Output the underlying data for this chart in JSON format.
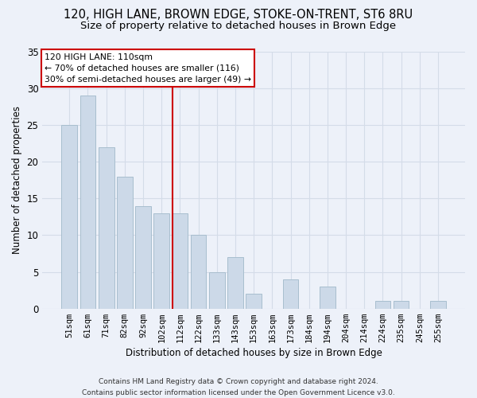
{
  "title_line1": "120, HIGH LANE, BROWN EDGE, STOKE-ON-TRENT, ST6 8RU",
  "title_line2": "Size of property relative to detached houses in Brown Edge",
  "xlabel": "Distribution of detached houses by size in Brown Edge",
  "ylabel": "Number of detached properties",
  "categories": [
    "51sqm",
    "61sqm",
    "71sqm",
    "82sqm",
    "92sqm",
    "102sqm",
    "112sqm",
    "122sqm",
    "133sqm",
    "143sqm",
    "153sqm",
    "163sqm",
    "173sqm",
    "184sqm",
    "194sqm",
    "204sqm",
    "214sqm",
    "224sqm",
    "235sqm",
    "245sqm",
    "255sqm"
  ],
  "values": [
    25,
    29,
    22,
    18,
    14,
    13,
    13,
    10,
    5,
    7,
    2,
    0,
    4,
    0,
    3,
    0,
    0,
    1,
    1,
    0,
    1
  ],
  "bar_color": "#ccd9e8",
  "bar_edge_color": "#a8bece",
  "grid_color": "#d4dce8",
  "vline_color": "#cc0000",
  "annotation_line1": "120 HIGH LANE: 110sqm",
  "annotation_line2": "← 70% of detached houses are smaller (116)",
  "annotation_line3": "30% of semi-detached houses are larger (49) →",
  "annotation_box_color": "#ffffff",
  "annotation_box_edge": "#cc0000",
  "footer_line1": "Contains HM Land Registry data © Crown copyright and database right 2024.",
  "footer_line2": "Contains public sector information licensed under the Open Government Licence v3.0.",
  "ylim": [
    0,
    35
  ],
  "yticks": [
    0,
    5,
    10,
    15,
    20,
    25,
    30,
    35
  ],
  "background_color": "#edf1f9",
  "title_fontsize": 10.5,
  "subtitle_fontsize": 9.5,
  "footer_fontsize": 6.5,
  "vline_pos": 6.0
}
